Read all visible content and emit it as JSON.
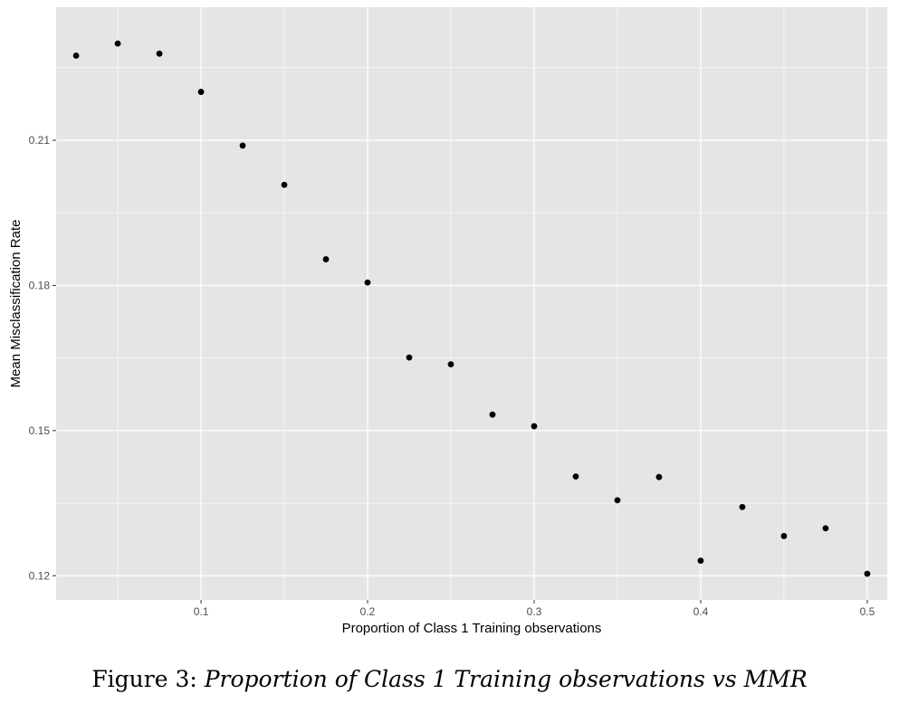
{
  "chart_data": {
    "type": "scatter",
    "xlabel": "Proportion of Class 1 Training observations",
    "ylabel": "Mean Misclassification Rate",
    "xlim": [
      0.013,
      0.512
    ],
    "ylim": [
      0.115,
      0.2375
    ],
    "x_ticks": [
      0.1,
      0.2,
      0.3,
      0.4,
      0.5
    ],
    "y_ticks": [
      0.12,
      0.15,
      0.18,
      0.21
    ],
    "x_tick_labels": [
      "0.1",
      "0.2",
      "0.3",
      "0.4",
      "0.5"
    ],
    "y_tick_labels": [
      "0.12",
      "0.15",
      "0.18",
      "0.21"
    ],
    "grid": true,
    "point_color": "#000000",
    "panel_background": "#e5e5e5",
    "grid_color": "#ffffff",
    "points": [
      {
        "x": 0.025,
        "y": 0.2275
      },
      {
        "x": 0.05,
        "y": 0.23
      },
      {
        "x": 0.075,
        "y": 0.2279
      },
      {
        "x": 0.1,
        "y": 0.22
      },
      {
        "x": 0.125,
        "y": 0.2089
      },
      {
        "x": 0.15,
        "y": 0.2008
      },
      {
        "x": 0.175,
        "y": 0.1854
      },
      {
        "x": 0.2,
        "y": 0.1806
      },
      {
        "x": 0.225,
        "y": 0.1651
      },
      {
        "x": 0.25,
        "y": 0.1637
      },
      {
        "x": 0.275,
        "y": 0.1533
      },
      {
        "x": 0.3,
        "y": 0.1509
      },
      {
        "x": 0.325,
        "y": 0.1405
      },
      {
        "x": 0.35,
        "y": 0.1356
      },
      {
        "x": 0.375,
        "y": 0.1404
      },
      {
        "x": 0.4,
        "y": 0.1231
      },
      {
        "x": 0.425,
        "y": 0.1342
      },
      {
        "x": 0.45,
        "y": 0.1282
      },
      {
        "x": 0.475,
        "y": 0.1298
      },
      {
        "x": 0.5,
        "y": 0.1204
      }
    ]
  },
  "caption": {
    "prefix": "Figure 3:",
    "text": "Proportion of Class 1 Training observations vs MMR"
  }
}
